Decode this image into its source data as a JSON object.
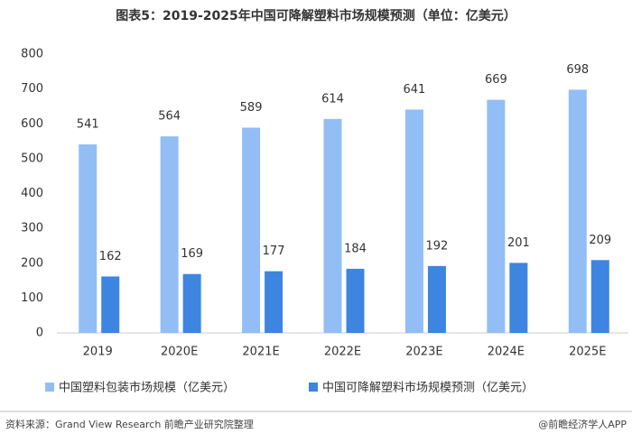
{
  "chart_data": {
    "type": "bar",
    "title": "图表5：2019-2025年中国可降解塑料市场规模预测（单位：亿美元）",
    "categories": [
      "2019",
      "2020E",
      "2021E",
      "2022E",
      "2023E",
      "2024E",
      "2025E"
    ],
    "series": [
      {
        "name": "中国塑料包装市场规模（亿美元）",
        "color": "#92bef5",
        "values": [
          541,
          564,
          589,
          614,
          641,
          669,
          698
        ]
      },
      {
        "name": "中国可降解塑料市场规模预测（亿美元）",
        "color": "#3d85e0",
        "values": [
          162,
          169,
          177,
          184,
          192,
          201,
          209
        ]
      }
    ],
    "ylim": [
      0,
      800
    ],
    "yticks": [
      0,
      100,
      200,
      300,
      400,
      500,
      600,
      700,
      800
    ],
    "grid": false
  },
  "footer": {
    "source": "资料来源：Grand View Research 前瞻产业研究院整理",
    "credit": "@前瞻经济学人APP"
  }
}
